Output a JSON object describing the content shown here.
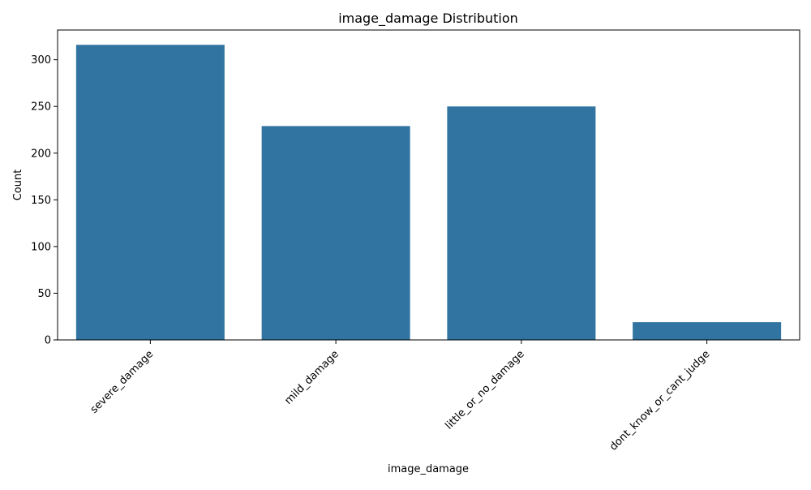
{
  "chart_data": {
    "type": "bar",
    "title": "image_damage Distribution",
    "xlabel": "image_damage",
    "ylabel": "Count",
    "categories": [
      "severe_damage",
      "mild_damage",
      "little_or_no_damage",
      "dont_know_or_cant_judge"
    ],
    "values": [
      316,
      229,
      250,
      19
    ],
    "ylim": [
      0,
      331.85
    ],
    "yticks": [
      "0",
      "50",
      "100",
      "150",
      "200",
      "250",
      "300"
    ],
    "bar_color": "#3274a1",
    "grid": false,
    "legend": "none"
  }
}
